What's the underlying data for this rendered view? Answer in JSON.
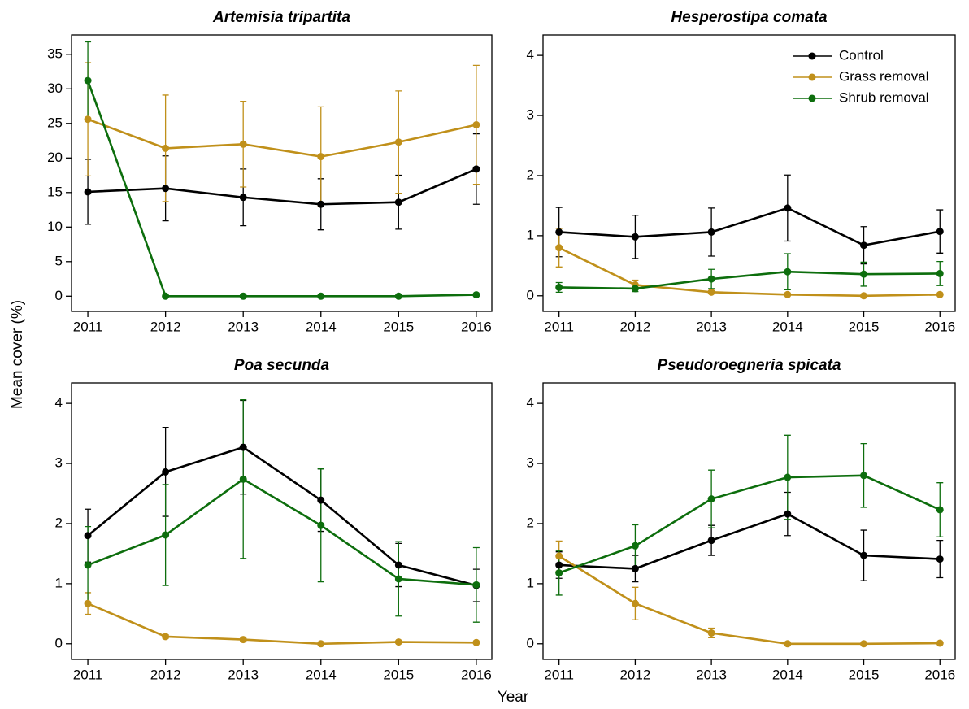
{
  "ylabel": "Mean cover (%)",
  "xlabel": "Year",
  "chart_data": [
    {
      "type": "line",
      "title": "Artemisia tripartita",
      "x": [
        2011,
        2012,
        2013,
        2014,
        2015,
        2016
      ],
      "xlim": [
        2010.79,
        2016.2
      ],
      "xticks": [
        2011,
        2012,
        2013,
        2014,
        2015,
        2016
      ],
      "ylim": [
        -2.2,
        37.8
      ],
      "yticks": [
        0,
        5,
        10,
        15,
        20,
        25,
        30,
        35
      ],
      "series": [
        {
          "name": "Control",
          "color": "#000000",
          "values": [
            15.1,
            15.6,
            14.3,
            13.3,
            13.6,
            18.4
          ],
          "errors": [
            4.7,
            4.7,
            4.1,
            3.7,
            3.9,
            5.1
          ]
        },
        {
          "name": "Grass removal",
          "color": "#c0901a",
          "values": [
            25.6,
            21.4,
            22.0,
            20.2,
            22.3,
            24.8
          ],
          "errors": [
            8.2,
            7.7,
            6.2,
            7.2,
            7.4,
            8.6
          ]
        },
        {
          "name": "Shrub removal",
          "color": "#0d6e0d",
          "values": [
            31.2,
            0,
            0,
            0,
            0,
            0.2
          ],
          "errors": [
            5.6,
            0.1,
            0.1,
            0.1,
            0.1,
            0.1
          ]
        }
      ]
    },
    {
      "type": "line",
      "title": "Hesperostipa comata",
      "x": [
        2011,
        2012,
        2013,
        2014,
        2015,
        2016
      ],
      "xlim": [
        2010.79,
        2016.2
      ],
      "xticks": [
        2011,
        2012,
        2013,
        2014,
        2015,
        2016
      ],
      "ylim": [
        -0.26,
        4.34
      ],
      "yticks": [
        0,
        1,
        2,
        3,
        4
      ],
      "legend": "top-right",
      "series": [
        {
          "name": "Control",
          "color": "#000000",
          "values": [
            1.06,
            0.98,
            1.06,
            1.46,
            0.84,
            1.07
          ],
          "errors": [
            0.41,
            0.36,
            0.4,
            0.55,
            0.31,
            0.36
          ]
        },
        {
          "name": "Grass removal",
          "color": "#c0901a",
          "values": [
            0.8,
            0.18,
            0.06,
            0.02,
            0.0,
            0.02
          ],
          "errors": [
            0.32,
            0.08,
            0.02,
            0.01,
            0.0,
            0.01
          ]
        },
        {
          "name": "Shrub removal",
          "color": "#0d6e0d",
          "values": [
            0.14,
            0.12,
            0.28,
            0.4,
            0.36,
            0.37
          ],
          "errors": [
            0.08,
            0.05,
            0.16,
            0.3,
            0.2,
            0.2
          ]
        }
      ]
    },
    {
      "type": "line",
      "title": "Poa secunda",
      "x": [
        2011,
        2012,
        2013,
        2014,
        2015,
        2016
      ],
      "xlim": [
        2010.79,
        2016.2
      ],
      "xticks": [
        2011,
        2012,
        2013,
        2014,
        2015,
        2016
      ],
      "ylim": [
        -0.26,
        4.34
      ],
      "yticks": [
        0,
        1,
        2,
        3,
        4
      ],
      "series": [
        {
          "name": "Control",
          "color": "#000000",
          "values": [
            1.8,
            2.86,
            3.27,
            2.39,
            1.31,
            0.97
          ],
          "errors": [
            0.44,
            0.74,
            0.78,
            0.52,
            0.36,
            0.27
          ]
        },
        {
          "name": "Grass removal",
          "color": "#c0901a",
          "values": [
            0.67,
            0.12,
            0.07,
            0.0,
            0.03,
            0.02
          ],
          "errors": [
            0.18,
            0.03,
            0.02,
            0.0,
            0.01,
            0.01
          ]
        },
        {
          "name": "Shrub removal",
          "color": "#0d6e0d",
          "values": [
            1.31,
            1.81,
            2.74,
            1.97,
            1.08,
            0.98
          ],
          "errors": [
            0.64,
            0.84,
            1.32,
            0.94,
            0.62,
            0.62
          ]
        }
      ]
    },
    {
      "type": "line",
      "title": "Pseudoroegneria spicata",
      "x": [
        2011,
        2012,
        2013,
        2014,
        2015,
        2016
      ],
      "xlim": [
        2010.79,
        2016.2
      ],
      "xticks": [
        2011,
        2012,
        2013,
        2014,
        2015,
        2016
      ],
      "ylim": [
        -0.26,
        4.34
      ],
      "yticks": [
        0,
        1,
        2,
        3,
        4
      ],
      "series": [
        {
          "name": "Control",
          "color": "#000000",
          "values": [
            1.31,
            1.25,
            1.72,
            2.16,
            1.47,
            1.41
          ],
          "errors": [
            0.22,
            0.22,
            0.25,
            0.36,
            0.42,
            0.31
          ]
        },
        {
          "name": "Grass removal",
          "color": "#c0901a",
          "values": [
            1.46,
            0.67,
            0.18,
            0.0,
            0.0,
            0.01
          ],
          "errors": [
            0.25,
            0.27,
            0.08,
            0.0,
            0.0,
            0.0
          ]
        },
        {
          "name": "Shrub removal",
          "color": "#0d6e0d",
          "values": [
            1.18,
            1.63,
            2.41,
            2.77,
            2.8,
            2.23
          ],
          "errors": [
            0.37,
            0.35,
            0.48,
            0.7,
            0.53,
            0.45
          ]
        }
      ]
    }
  ]
}
